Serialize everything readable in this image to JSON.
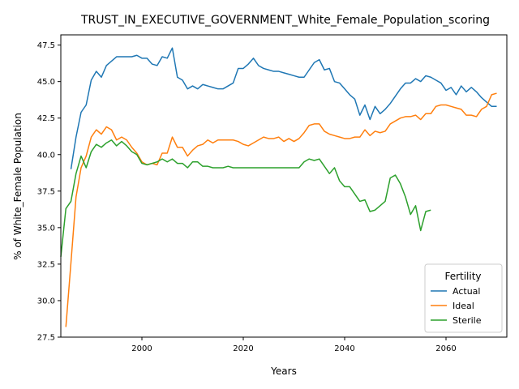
{
  "chart_data": {
    "type": "line",
    "title": "TRUST_IN_EXECUTIVE_GOVERNMENT_White_Female_Population_scoring",
    "xlabel": "Years",
    "ylabel": "% of White_Female Population",
    "xlim": [
      1984,
      2072
    ],
    "ylim": [
      27.5,
      48.2
    ],
    "xticks": [
      1980,
      2000,
      2020,
      2040,
      2060
    ],
    "yticks": [
      27.5,
      30.0,
      32.5,
      35.0,
      37.5,
      40.0,
      42.5,
      45.0,
      47.5
    ],
    "grid": false,
    "legend": {
      "title": "Fertility",
      "placement": "lower-right"
    },
    "series": [
      {
        "name": "Actual",
        "color": "#1f77b4",
        "x": [
          1986,
          1987,
          1988,
          1989,
          1990,
          1991,
          1992,
          1993,
          1994,
          1995,
          1996,
          1997,
          1998,
          1999,
          2000,
          2001,
          2002,
          2003,
          2004,
          2005,
          2006,
          2007,
          2008,
          2009,
          2010,
          2011,
          2012,
          2013,
          2014,
          2015,
          2016,
          2017,
          2018,
          2019,
          2020,
          2021,
          2022,
          2023,
          2024,
          2025,
          2026,
          2027,
          2028,
          2029,
          2030,
          2031,
          2032,
          2033,
          2034,
          2035,
          2036,
          2037,
          2038,
          2039,
          2040,
          2041,
          2042,
          2043,
          2044,
          2045,
          2046,
          2047,
          2048,
          2049,
          2050,
          2051,
          2052,
          2053,
          2054,
          2055,
          2056,
          2057,
          2058,
          2059,
          2060,
          2061,
          2062,
          2063,
          2064,
          2065,
          2066,
          2067,
          2068,
          2069,
          2070
        ],
        "values": [
          39.0,
          41.2,
          42.9,
          43.4,
          45.1,
          45.7,
          45.3,
          46.1,
          46.4,
          46.7,
          46.7,
          46.7,
          46.7,
          46.8,
          46.6,
          46.6,
          46.2,
          46.1,
          46.7,
          46.6,
          47.3,
          45.3,
          45.1,
          44.5,
          44.7,
          44.5,
          44.8,
          44.7,
          44.6,
          44.5,
          44.5,
          44.7,
          44.9,
          45.9,
          45.9,
          46.2,
          46.6,
          46.1,
          45.9,
          45.8,
          45.7,
          45.7,
          45.6,
          45.5,
          45.4,
          45.3,
          45.3,
          45.8,
          46.3,
          46.5,
          45.8,
          45.9,
          45.0,
          44.9,
          44.5,
          44.1,
          43.8,
          42.7,
          43.4,
          42.4,
          43.3,
          42.8,
          43.1,
          43.5,
          44.0,
          44.5,
          44.9,
          44.9,
          45.2,
          45.0,
          45.4,
          45.3,
          45.1,
          44.9,
          44.4,
          44.6,
          44.1,
          44.7,
          44.3,
          44.6,
          44.3,
          43.9,
          43.6,
          43.3,
          43.3
        ]
      },
      {
        "name": "Ideal",
        "color": "#ff7f0e",
        "x": [
          1985,
          1986,
          1987,
          1988,
          1989,
          1990,
          1991,
          1992,
          1993,
          1994,
          1995,
          1996,
          1997,
          1998,
          1999,
          2000,
          2001,
          2002,
          2003,
          2004,
          2005,
          2006,
          2007,
          2008,
          2009,
          2010,
          2011,
          2012,
          2013,
          2014,
          2015,
          2016,
          2017,
          2018,
          2019,
          2020,
          2021,
          2022,
          2023,
          2024,
          2025,
          2026,
          2027,
          2028,
          2029,
          2030,
          2031,
          2032,
          2033,
          2034,
          2035,
          2036,
          2037,
          2038,
          2039,
          2040,
          2041,
          2042,
          2043,
          2044,
          2045,
          2046,
          2047,
          2048,
          2049,
          2050,
          2051,
          2052,
          2053,
          2054,
          2055,
          2056,
          2057,
          2058,
          2059,
          2060,
          2061,
          2062,
          2063,
          2064,
          2065,
          2066,
          2067,
          2068,
          2069,
          2070
        ],
        "values": [
          28.2,
          32.6,
          37.1,
          39.1,
          39.9,
          41.2,
          41.7,
          41.4,
          41.9,
          41.7,
          41.0,
          41.2,
          41.0,
          40.5,
          40.1,
          39.5,
          39.3,
          39.4,
          39.3,
          40.1,
          40.1,
          41.2,
          40.5,
          40.5,
          39.9,
          40.3,
          40.6,
          40.7,
          41.0,
          40.8,
          41.0,
          41.0,
          41.0,
          41.0,
          40.9,
          40.7,
          40.6,
          40.8,
          41.0,
          41.2,
          41.1,
          41.1,
          41.2,
          40.9,
          41.1,
          40.9,
          41.1,
          41.5,
          42.0,
          42.1,
          42.1,
          41.6,
          41.4,
          41.3,
          41.2,
          41.1,
          41.1,
          41.2,
          41.2,
          41.7,
          41.3,
          41.6,
          41.5,
          41.6,
          42.1,
          42.3,
          42.5,
          42.6,
          42.6,
          42.7,
          42.4,
          42.8,
          42.8,
          43.3,
          43.4,
          43.4,
          43.3,
          43.2,
          43.1,
          42.7,
          42.7,
          42.6,
          43.1,
          43.3,
          44.1,
          44.2
        ]
      },
      {
        "name": "Sterile",
        "color": "#2ca02c",
        "x": [
          1984,
          1985,
          1986,
          1987,
          1988,
          1989,
          1990,
          1991,
          1992,
          1993,
          1994,
          1995,
          1996,
          1997,
          1998,
          1999,
          2000,
          2001,
          2002,
          2003,
          2004,
          2005,
          2006,
          2007,
          2008,
          2009,
          2010,
          2011,
          2012,
          2013,
          2014,
          2015,
          2016,
          2017,
          2018,
          2019,
          2020,
          2021,
          2022,
          2023,
          2024,
          2025,
          2026,
          2027,
          2028,
          2029,
          2030,
          2031,
          2032,
          2033,
          2034,
          2035,
          2036,
          2037,
          2038,
          2039,
          2040,
          2041,
          2042,
          2043,
          2044,
          2045,
          2046,
          2047,
          2048,
          2049,
          2050,
          2051,
          2052,
          2053,
          2054,
          2055,
          2056,
          2057
        ],
        "values": [
          33.0,
          36.3,
          36.8,
          38.7,
          39.9,
          39.1,
          40.2,
          40.7,
          40.5,
          40.8,
          41.0,
          40.6,
          40.9,
          40.6,
          40.2,
          40.0,
          39.4,
          39.3,
          39.4,
          39.5,
          39.7,
          39.5,
          39.7,
          39.4,
          39.4,
          39.1,
          39.5,
          39.5,
          39.2,
          39.2,
          39.1,
          39.1,
          39.1,
          39.2,
          39.1,
          39.1,
          39.1,
          39.1,
          39.1,
          39.1,
          39.1,
          39.1,
          39.1,
          39.1,
          39.1,
          39.1,
          39.1,
          39.1,
          39.5,
          39.7,
          39.6,
          39.7,
          39.2,
          38.7,
          39.1,
          38.2,
          37.8,
          37.8,
          37.3,
          36.8,
          36.9,
          36.1,
          36.2,
          36.5,
          36.8,
          38.4,
          38.6,
          38.0,
          37.1,
          35.9,
          36.5,
          34.8,
          36.1,
          36.2
        ]
      }
    ]
  }
}
